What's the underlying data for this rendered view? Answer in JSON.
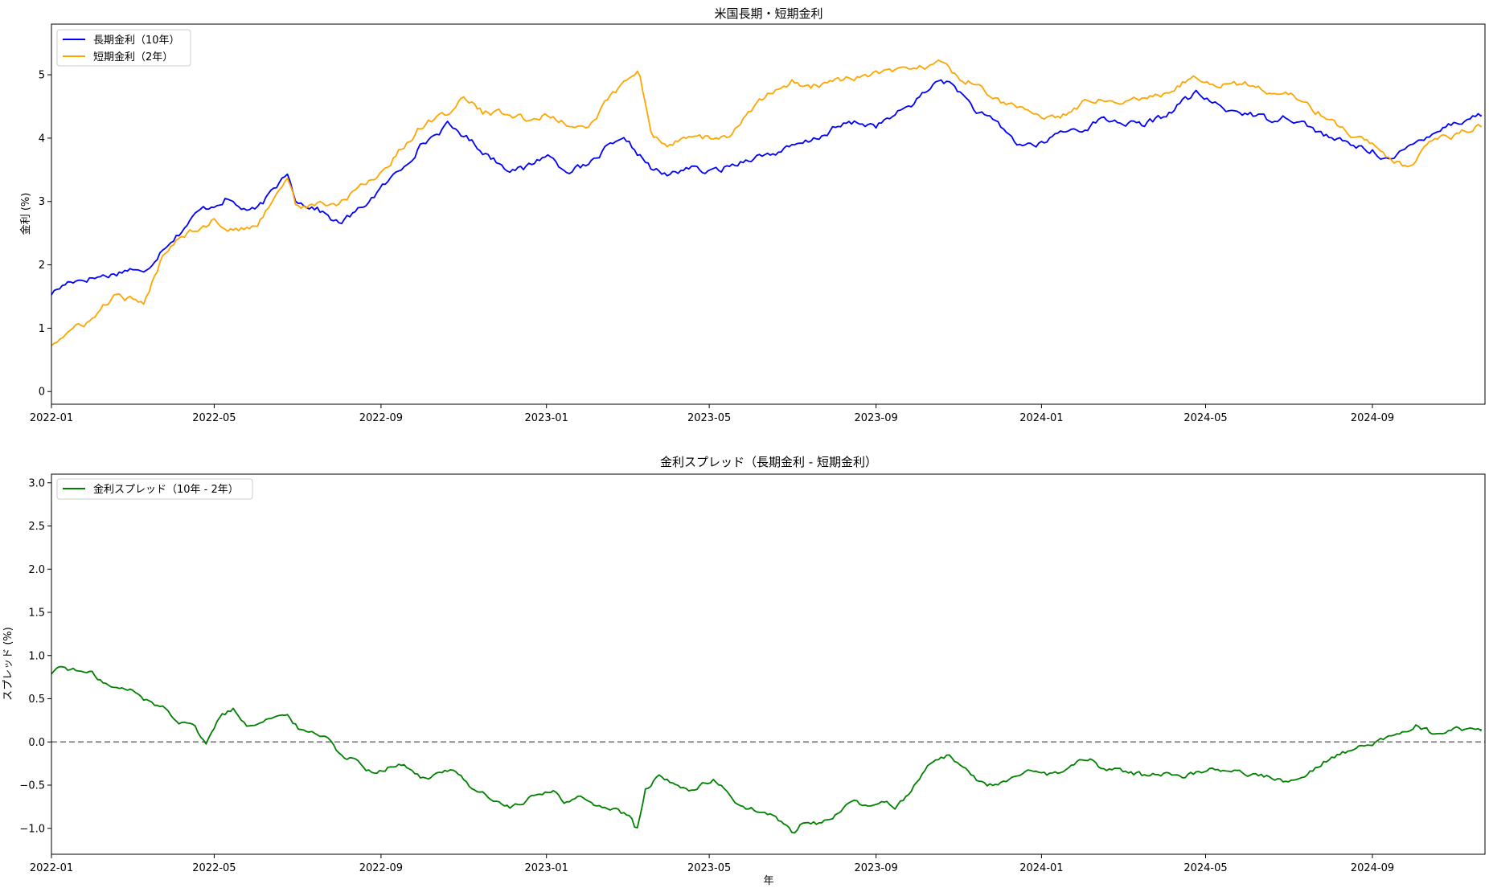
{
  "chart_data": [
    {
      "type": "line",
      "title": "米国長期・短期金利",
      "xlabel": "",
      "ylabel": "金利 (%)",
      "x_start": "2022-01-01",
      "x_end": "2024-11-20",
      "xlim": [
        "2022-01-01",
        "2024-11-23"
      ],
      "ylim": [
        -0.2,
        5.8
      ],
      "xticks": [
        "2022-01",
        "2022-05",
        "2022-09",
        "2023-01",
        "2023-05",
        "2023-09",
        "2024-01",
        "2024-05",
        "2024-09"
      ],
      "yticks": [
        "0",
        "1",
        "2",
        "3",
        "4",
        "5"
      ],
      "legend_position": "upper-left",
      "grid": false,
      "series": [
        {
          "name": "長期金利（10年）",
          "color": "#0000ff",
          "x": [
            "2022-01-01",
            "2022-01-15",
            "2022-02-01",
            "2022-02-15",
            "2022-03-01",
            "2022-03-10",
            "2022-03-25",
            "2022-04-05",
            "2022-04-20",
            "2022-05-01",
            "2022-05-10",
            "2022-05-20",
            "2022-06-01",
            "2022-06-15",
            "2022-06-24",
            "2022-07-01",
            "2022-07-15",
            "2022-08-01",
            "2022-08-15",
            "2022-09-01",
            "2022-09-15",
            "2022-10-01",
            "2022-10-20",
            "2022-11-01",
            "2022-11-15",
            "2022-12-01",
            "2022-12-15",
            "2023-01-01",
            "2023-01-15",
            "2023-02-01",
            "2023-02-15",
            "2023-03-01",
            "2023-03-10",
            "2023-03-20",
            "2023-04-01",
            "2023-04-15",
            "2023-05-01",
            "2023-05-15",
            "2023-06-01",
            "2023-06-15",
            "2023-07-01",
            "2023-07-15",
            "2023-08-01",
            "2023-08-15",
            "2023-09-01",
            "2023-09-15",
            "2023-10-01",
            "2023-10-19",
            "2023-11-01",
            "2023-11-15",
            "2023-12-01",
            "2023-12-15",
            "2024-01-01",
            "2024-01-15",
            "2024-02-01",
            "2024-02-15",
            "2024-03-01",
            "2024-03-15",
            "2024-04-01",
            "2024-04-15",
            "2024-04-25",
            "2024-05-15",
            "2024-06-01",
            "2024-06-15",
            "2024-07-01",
            "2024-07-15",
            "2024-08-01",
            "2024-08-15",
            "2024-09-01",
            "2024-09-16",
            "2024-10-01",
            "2024-10-15",
            "2024-11-01",
            "2024-11-20"
          ],
          "values": [
            1.55,
            1.75,
            1.8,
            1.85,
            1.95,
            1.85,
            2.3,
            2.5,
            2.85,
            2.95,
            3.05,
            2.9,
            2.85,
            3.2,
            3.48,
            3.0,
            2.9,
            2.65,
            2.85,
            3.2,
            3.5,
            3.9,
            4.2,
            4.05,
            3.8,
            3.55,
            3.5,
            3.75,
            3.5,
            3.55,
            3.85,
            3.95,
            3.75,
            3.5,
            3.4,
            3.55,
            3.45,
            3.55,
            3.7,
            3.75,
            3.85,
            3.95,
            4.15,
            4.25,
            4.2,
            4.35,
            4.6,
            4.95,
            4.75,
            4.4,
            4.2,
            3.9,
            3.9,
            4.1,
            4.15,
            4.3,
            4.25,
            4.2,
            4.35,
            4.6,
            4.7,
            4.45,
            4.4,
            4.3,
            4.35,
            4.2,
            4.0,
            3.9,
            3.8,
            3.65,
            3.9,
            4.1,
            4.25,
            4.37
          ]
        },
        {
          "name": "短期金利（2年）",
          "color": "#ffa500",
          "x": [
            "2022-01-01",
            "2022-01-15",
            "2022-02-01",
            "2022-02-15",
            "2022-03-01",
            "2022-03-10",
            "2022-03-25",
            "2022-04-05",
            "2022-04-20",
            "2022-05-01",
            "2022-05-10",
            "2022-05-20",
            "2022-06-01",
            "2022-06-15",
            "2022-06-24",
            "2022-07-01",
            "2022-07-15",
            "2022-08-01",
            "2022-08-15",
            "2022-09-01",
            "2022-09-15",
            "2022-10-01",
            "2022-10-20",
            "2022-11-01",
            "2022-11-15",
            "2022-12-01",
            "2022-12-15",
            "2023-01-01",
            "2023-01-15",
            "2023-02-01",
            "2023-02-15",
            "2023-03-01",
            "2023-03-10",
            "2023-03-20",
            "2023-04-01",
            "2023-04-15",
            "2023-05-01",
            "2023-05-15",
            "2023-06-01",
            "2023-06-15",
            "2023-07-01",
            "2023-07-15",
            "2023-08-01",
            "2023-08-15",
            "2023-09-01",
            "2023-09-15",
            "2023-10-01",
            "2023-10-19",
            "2023-11-01",
            "2023-11-15",
            "2023-12-01",
            "2023-12-15",
            "2024-01-01",
            "2024-01-15",
            "2024-02-01",
            "2024-02-15",
            "2024-03-01",
            "2024-03-15",
            "2024-04-01",
            "2024-04-15",
            "2024-04-25",
            "2024-05-15",
            "2024-06-01",
            "2024-06-15",
            "2024-07-01",
            "2024-07-15",
            "2024-08-01",
            "2024-08-15",
            "2024-09-01",
            "2024-09-16",
            "2024-10-01",
            "2024-10-15",
            "2024-11-01",
            "2024-11-20"
          ],
          "values": [
            0.75,
            0.95,
            1.15,
            1.5,
            1.45,
            1.35,
            2.2,
            2.45,
            2.6,
            2.7,
            2.6,
            2.55,
            2.6,
            3.1,
            3.4,
            2.9,
            2.95,
            2.95,
            3.2,
            3.45,
            3.8,
            4.2,
            4.4,
            4.65,
            4.4,
            4.4,
            4.3,
            4.35,
            4.25,
            4.15,
            4.6,
            4.9,
            5.05,
            4.0,
            3.9,
            4.05,
            4.0,
            4.0,
            4.45,
            4.7,
            4.9,
            4.8,
            4.9,
            4.95,
            5.0,
            5.05,
            5.1,
            5.2,
            4.95,
            4.85,
            4.6,
            4.45,
            4.35,
            4.35,
            4.55,
            4.65,
            4.6,
            4.65,
            4.7,
            4.9,
            4.95,
            4.85,
            4.85,
            4.75,
            4.7,
            4.5,
            4.3,
            4.05,
            3.9,
            3.6,
            3.55,
            3.95,
            4.05,
            4.2
          ]
        }
      ]
    },
    {
      "type": "line",
      "title": "金利スプレッド（長期金利 - 短期金利）",
      "xlabel": "年",
      "ylabel": "スプレッド (%)",
      "x_start": "2022-01-01",
      "x_end": "2024-11-20",
      "xlim": [
        "2022-01-01",
        "2024-11-23"
      ],
      "ylim": [
        -1.3,
        3.1
      ],
      "xticks": [
        "2022-01",
        "2022-05",
        "2022-09",
        "2023-01",
        "2023-05",
        "2023-09",
        "2024-01",
        "2024-05",
        "2024-09"
      ],
      "yticks": [
        "−1.0",
        "−0.5",
        "0.0",
        "0.5",
        "1.0",
        "1.5",
        "2.0",
        "2.5",
        "3.0"
      ],
      "reference_line": {
        "y": 0.0,
        "style": "dashed",
        "color": "#808080"
      },
      "legend_position": "upper-left",
      "grid": false,
      "series": [
        {
          "name": "金利スプレッド（10年 - 2年）",
          "color": "#008000",
          "x": [
            "2022-01-01",
            "2022-01-08",
            "2022-01-20",
            "2022-02-01",
            "2022-02-15",
            "2022-03-01",
            "2022-03-15",
            "2022-03-25",
            "2022-04-01",
            "2022-04-05",
            "2022-04-15",
            "2022-04-25",
            "2022-05-05",
            "2022-05-15",
            "2022-05-25",
            "2022-06-05",
            "2022-06-15",
            "2022-06-25",
            "2022-07-05",
            "2022-07-15",
            "2022-07-25",
            "2022-08-05",
            "2022-08-15",
            "2022-08-25",
            "2022-09-05",
            "2022-09-15",
            "2022-09-25",
            "2022-10-05",
            "2022-10-15",
            "2022-10-25",
            "2022-11-05",
            "2022-11-15",
            "2022-11-25",
            "2022-12-05",
            "2022-12-15",
            "2022-12-25",
            "2023-01-05",
            "2023-01-15",
            "2023-01-25",
            "2023-02-05",
            "2023-02-15",
            "2023-02-25",
            "2023-03-05",
            "2023-03-08",
            "2023-03-15",
            "2023-03-25",
            "2023-04-05",
            "2023-04-15",
            "2023-04-25",
            "2023-05-05",
            "2023-05-15",
            "2023-05-25",
            "2023-06-05",
            "2023-06-15",
            "2023-06-25",
            "2023-07-03",
            "2023-07-10",
            "2023-07-20",
            "2023-08-01",
            "2023-08-15",
            "2023-08-25",
            "2023-09-05",
            "2023-09-15",
            "2023-09-25",
            "2023-10-05",
            "2023-10-15",
            "2023-10-25",
            "2023-11-05",
            "2023-11-15",
            "2023-11-25",
            "2023-12-05",
            "2023-12-15",
            "2023-12-25",
            "2024-01-05",
            "2024-01-15",
            "2024-01-25",
            "2024-02-05",
            "2024-02-15",
            "2024-02-25",
            "2024-03-05",
            "2024-03-15",
            "2024-03-25",
            "2024-04-05",
            "2024-04-15",
            "2024-04-25",
            "2024-05-05",
            "2024-05-15",
            "2024-05-25",
            "2024-06-05",
            "2024-06-15",
            "2024-06-25",
            "2024-07-05",
            "2024-07-15",
            "2024-07-25",
            "2024-08-05",
            "2024-08-15",
            "2024-08-25",
            "2024-09-05",
            "2024-09-15",
            "2024-09-25",
            "2024-10-05",
            "2024-10-15",
            "2024-10-25",
            "2024-11-05",
            "2024-11-20"
          ],
          "values": [
            0.8,
            0.88,
            0.82,
            0.78,
            0.62,
            0.6,
            0.45,
            0.4,
            0.3,
            0.25,
            0.22,
            -0.03,
            0.3,
            0.38,
            0.2,
            0.25,
            0.3,
            0.28,
            0.12,
            0.1,
            0.05,
            -0.2,
            -0.2,
            -0.35,
            -0.3,
            -0.25,
            -0.35,
            -0.45,
            -0.35,
            -0.3,
            -0.5,
            -0.6,
            -0.7,
            -0.75,
            -0.72,
            -0.6,
            -0.55,
            -0.7,
            -0.65,
            -0.72,
            -0.75,
            -0.82,
            -0.9,
            -1.07,
            -0.55,
            -0.4,
            -0.5,
            -0.55,
            -0.5,
            -0.45,
            -0.6,
            -0.75,
            -0.8,
            -0.85,
            -0.95,
            -1.07,
            -0.9,
            -0.95,
            -0.85,
            -0.7,
            -0.75,
            -0.7,
            -0.75,
            -0.6,
            -0.35,
            -0.2,
            -0.15,
            -0.3,
            -0.45,
            -0.5,
            -0.45,
            -0.4,
            -0.35,
            -0.38,
            -0.35,
            -0.25,
            -0.2,
            -0.3,
            -0.32,
            -0.35,
            -0.38,
            -0.35,
            -0.38,
            -0.4,
            -0.35,
            -0.3,
            -0.32,
            -0.35,
            -0.38,
            -0.4,
            -0.45,
            -0.45,
            -0.35,
            -0.25,
            -0.15,
            -0.1,
            -0.05,
            0.0,
            0.05,
            0.15,
            0.2,
            0.1,
            0.12,
            0.15,
            0.15
          ]
        }
      ]
    }
  ]
}
